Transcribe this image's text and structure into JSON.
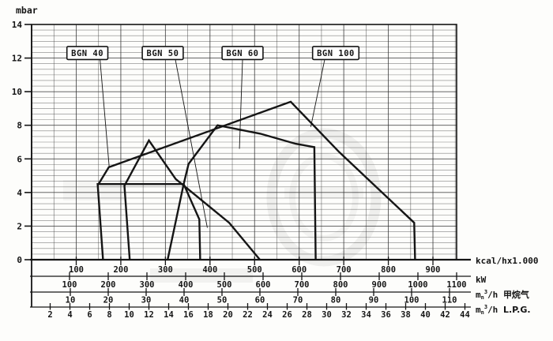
{
  "chart_data": {
    "type": "line",
    "title": "",
    "description": "Scanned working-field (back pressure vs heat output) diagram for BGN gas burners",
    "grid": "dense millimeter grid, on",
    "y_axis": {
      "unit_label": "mbar",
      "min": 0,
      "max": 14,
      "tick_step": 2,
      "ticks": [
        0,
        2,
        4,
        6,
        8,
        10,
        12,
        14
      ]
    },
    "x_axes": [
      {
        "id": "kcal",
        "unit_label": "kcal/hx1.000",
        "ticks": [
          100,
          200,
          300,
          400,
          500,
          600,
          700,
          800,
          900
        ]
      },
      {
        "id": "kw",
        "unit_label": "kW",
        "ticks": [
          100,
          200,
          300,
          400,
          500,
          600,
          700,
          800,
          900,
          1000,
          1100
        ]
      },
      {
        "id": "methane",
        "unit_prefix_m": "m",
        "unit_sub": "n",
        "unit_sup": "3",
        "unit_rest": "/h",
        "unit_label": "甲烷气",
        "ticks": [
          10,
          20,
          30,
          40,
          50,
          60,
          70,
          80,
          90,
          100,
          110
        ]
      },
      {
        "id": "lpg",
        "unit_prefix_m": "m",
        "unit_sub": "n",
        "unit_sup": "3",
        "unit_rest": "/h",
        "unit_label": "L.P.G.",
        "ticks": [
          2,
          4,
          6,
          8,
          10,
          12,
          14,
          16,
          18,
          20,
          22,
          24,
          26,
          28,
          30,
          32,
          34,
          36,
          38,
          40,
          42,
          44
        ]
      }
    ],
    "series": [
      {
        "name": "BGN 40",
        "points_kcal_mbar": [
          [
            160,
            0
          ],
          [
            148,
            4.5
          ],
          [
            341,
            4.5
          ],
          [
            376,
            2.4
          ],
          [
            378,
            0
          ]
        ]
      },
      {
        "name": "BGN 50",
        "points_kcal_mbar": [
          [
            220,
            0
          ],
          [
            208,
            4.4
          ],
          [
            263,
            7.1
          ],
          [
            323,
            4.8
          ],
          [
            443,
            2.2
          ],
          [
            512,
            0
          ]
        ]
      },
      {
        "name": "BGN 60",
        "points_kcal_mbar": [
          [
            305,
            0
          ],
          [
            341,
            4.5
          ],
          [
            352,
            5.7
          ],
          [
            417,
            8.0
          ],
          [
            513,
            7.5
          ],
          [
            592,
            6.9
          ],
          [
            634,
            6.7
          ],
          [
            637,
            0
          ]
        ]
      },
      {
        "name": "BGN 100",
        "points_kcal_mbar": [
          [
            150,
            4.5
          ],
          [
            173,
            5.5
          ],
          [
            581,
            9.4
          ],
          [
            690,
            6.4
          ],
          [
            858,
            2.2
          ],
          [
            860,
            0
          ]
        ]
      }
    ],
    "curve_labels": [
      {
        "text": "BGN 40",
        "cx_kcal": 125,
        "cy_mbar": 12.3,
        "pointer_to": [
          174,
          5.5
        ]
      },
      {
        "text": "BGN 50",
        "cx_kcal": 294,
        "cy_mbar": 12.3,
        "pointer_to": [
          394,
          1.9
        ]
      },
      {
        "text": "BGN 60",
        "cx_kcal": 473,
        "cy_mbar": 12.3,
        "pointer_to": [
          466,
          6.6
        ]
      },
      {
        "text": "BGN 100",
        "cx_kcal": 682,
        "cy_mbar": 12.3,
        "pointer_to": [
          626,
          7.9
        ]
      }
    ]
  },
  "watermark": {
    "present": true
  }
}
